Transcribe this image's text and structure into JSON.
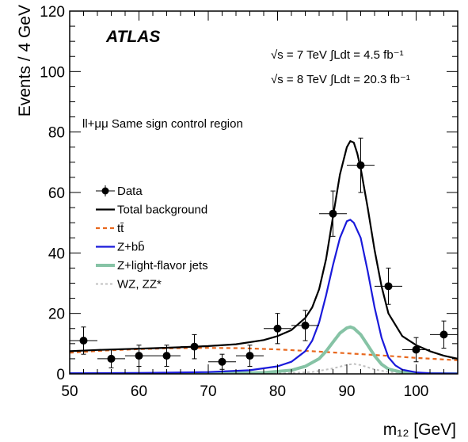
{
  "chart_data": {
    "type": "line",
    "experiment_label": "ATLAS",
    "lumi_7": "√s = 7 TeV  ∫Ldt = 4.5 fb⁻¹",
    "lumi_8": "√s = 8 TeV  ∫Ldt = 20.3 fb⁻¹",
    "region_label": "ll+μμ Same sign control region",
    "xlabel": "m₁₂ [GeV]",
    "ylabel": "Events / 4 GeV",
    "xlim": [
      50,
      106
    ],
    "ylim": [
      0,
      120
    ],
    "x_ticks": [
      50,
      60,
      70,
      80,
      90,
      100
    ],
    "y_ticks": [
      0,
      20,
      40,
      60,
      80,
      100,
      120
    ],
    "grid": false,
    "legend_position": "left",
    "data_points": {
      "name": "Data",
      "x": [
        52,
        56,
        60,
        64,
        68,
        72,
        76,
        80,
        84,
        88,
        92,
        96,
        100,
        104
      ],
      "y": [
        11,
        5,
        6,
        6,
        9,
        4,
        6,
        15,
        16,
        53,
        69,
        29,
        8,
        13
      ],
      "err": [
        4.5,
        3,
        3.5,
        3.5,
        4,
        2.5,
        3.5,
        5,
        5,
        7.5,
        9,
        6,
        4,
        4.5
      ],
      "xerr": 2
    },
    "series": [
      {
        "name": "Total background",
        "color": "#000000",
        "style": "solid",
        "x": [
          50,
          54,
          58,
          62,
          66,
          70,
          74,
          78,
          80,
          82,
          84,
          85,
          86,
          87,
          88,
          89,
          90,
          90.5,
          91,
          91.5,
          92,
          93,
          94,
          95,
          96,
          98,
          100,
          102,
          104,
          106
        ],
        "y": [
          7.5,
          7.9,
          8.2,
          8.5,
          8.8,
          9.2,
          9.8,
          11.2,
          12.5,
          14.5,
          18.5,
          22,
          28,
          38,
          52,
          66,
          75,
          77,
          76.5,
          73,
          68,
          55,
          41,
          29,
          20,
          12.5,
          9.5,
          7.5,
          6,
          5
        ]
      },
      {
        "name": "tt̄",
        "color": "#e8681e",
        "style": "dashed",
        "x": [
          50,
          55,
          60,
          65,
          70,
          75,
          80,
          85,
          90,
          95,
          100,
          106
        ],
        "y": [
          7,
          7.7,
          8.2,
          8.5,
          8.6,
          8.5,
          8.1,
          7.5,
          6.8,
          6.1,
          5.3,
          4.5
        ]
      },
      {
        "name": "Z+bb̄",
        "color": "#1a1adb",
        "style": "solid",
        "x": [
          50,
          60,
          70,
          76,
          80,
          82,
          84,
          85,
          86,
          87,
          88,
          89,
          90,
          90.5,
          91,
          92,
          93,
          94,
          95,
          96,
          97,
          98,
          100,
          102,
          106
        ],
        "y": [
          0.2,
          0.3,
          0.6,
          1.2,
          2.5,
          4,
          7.5,
          11,
          17,
          26,
          36,
          45,
          50.5,
          51,
          50,
          45,
          34,
          22,
          12,
          5.5,
          2.8,
          1.4,
          0.5,
          0.2,
          0.1
        ]
      },
      {
        "name": "Z+light-flavor jets",
        "color": "#86c3a5",
        "style": "solid",
        "x": [
          50,
          70,
          78,
          82,
          84,
          86,
          87,
          88,
          89,
          90,
          90.5,
          91,
          92,
          93,
          94,
          95,
          96,
          98,
          100,
          106
        ],
        "y": [
          0,
          0.1,
          0.4,
          1.2,
          2.5,
          5,
          7.5,
          10.5,
          13.5,
          15.2,
          15.5,
          15.1,
          13,
          9.5,
          6,
          3.2,
          1.6,
          0.5,
          0.1,
          0
        ]
      },
      {
        "name": "WZ, ZZ*",
        "color": "#c0c0c0",
        "style": "dotted",
        "x": [
          50,
          80,
          85,
          88,
          90,
          91,
          92,
          94,
          96,
          100,
          106
        ],
        "y": [
          0,
          0.1,
          0.6,
          1.8,
          3,
          3.3,
          2.9,
          1.5,
          0.6,
          0.1,
          0
        ]
      }
    ]
  }
}
